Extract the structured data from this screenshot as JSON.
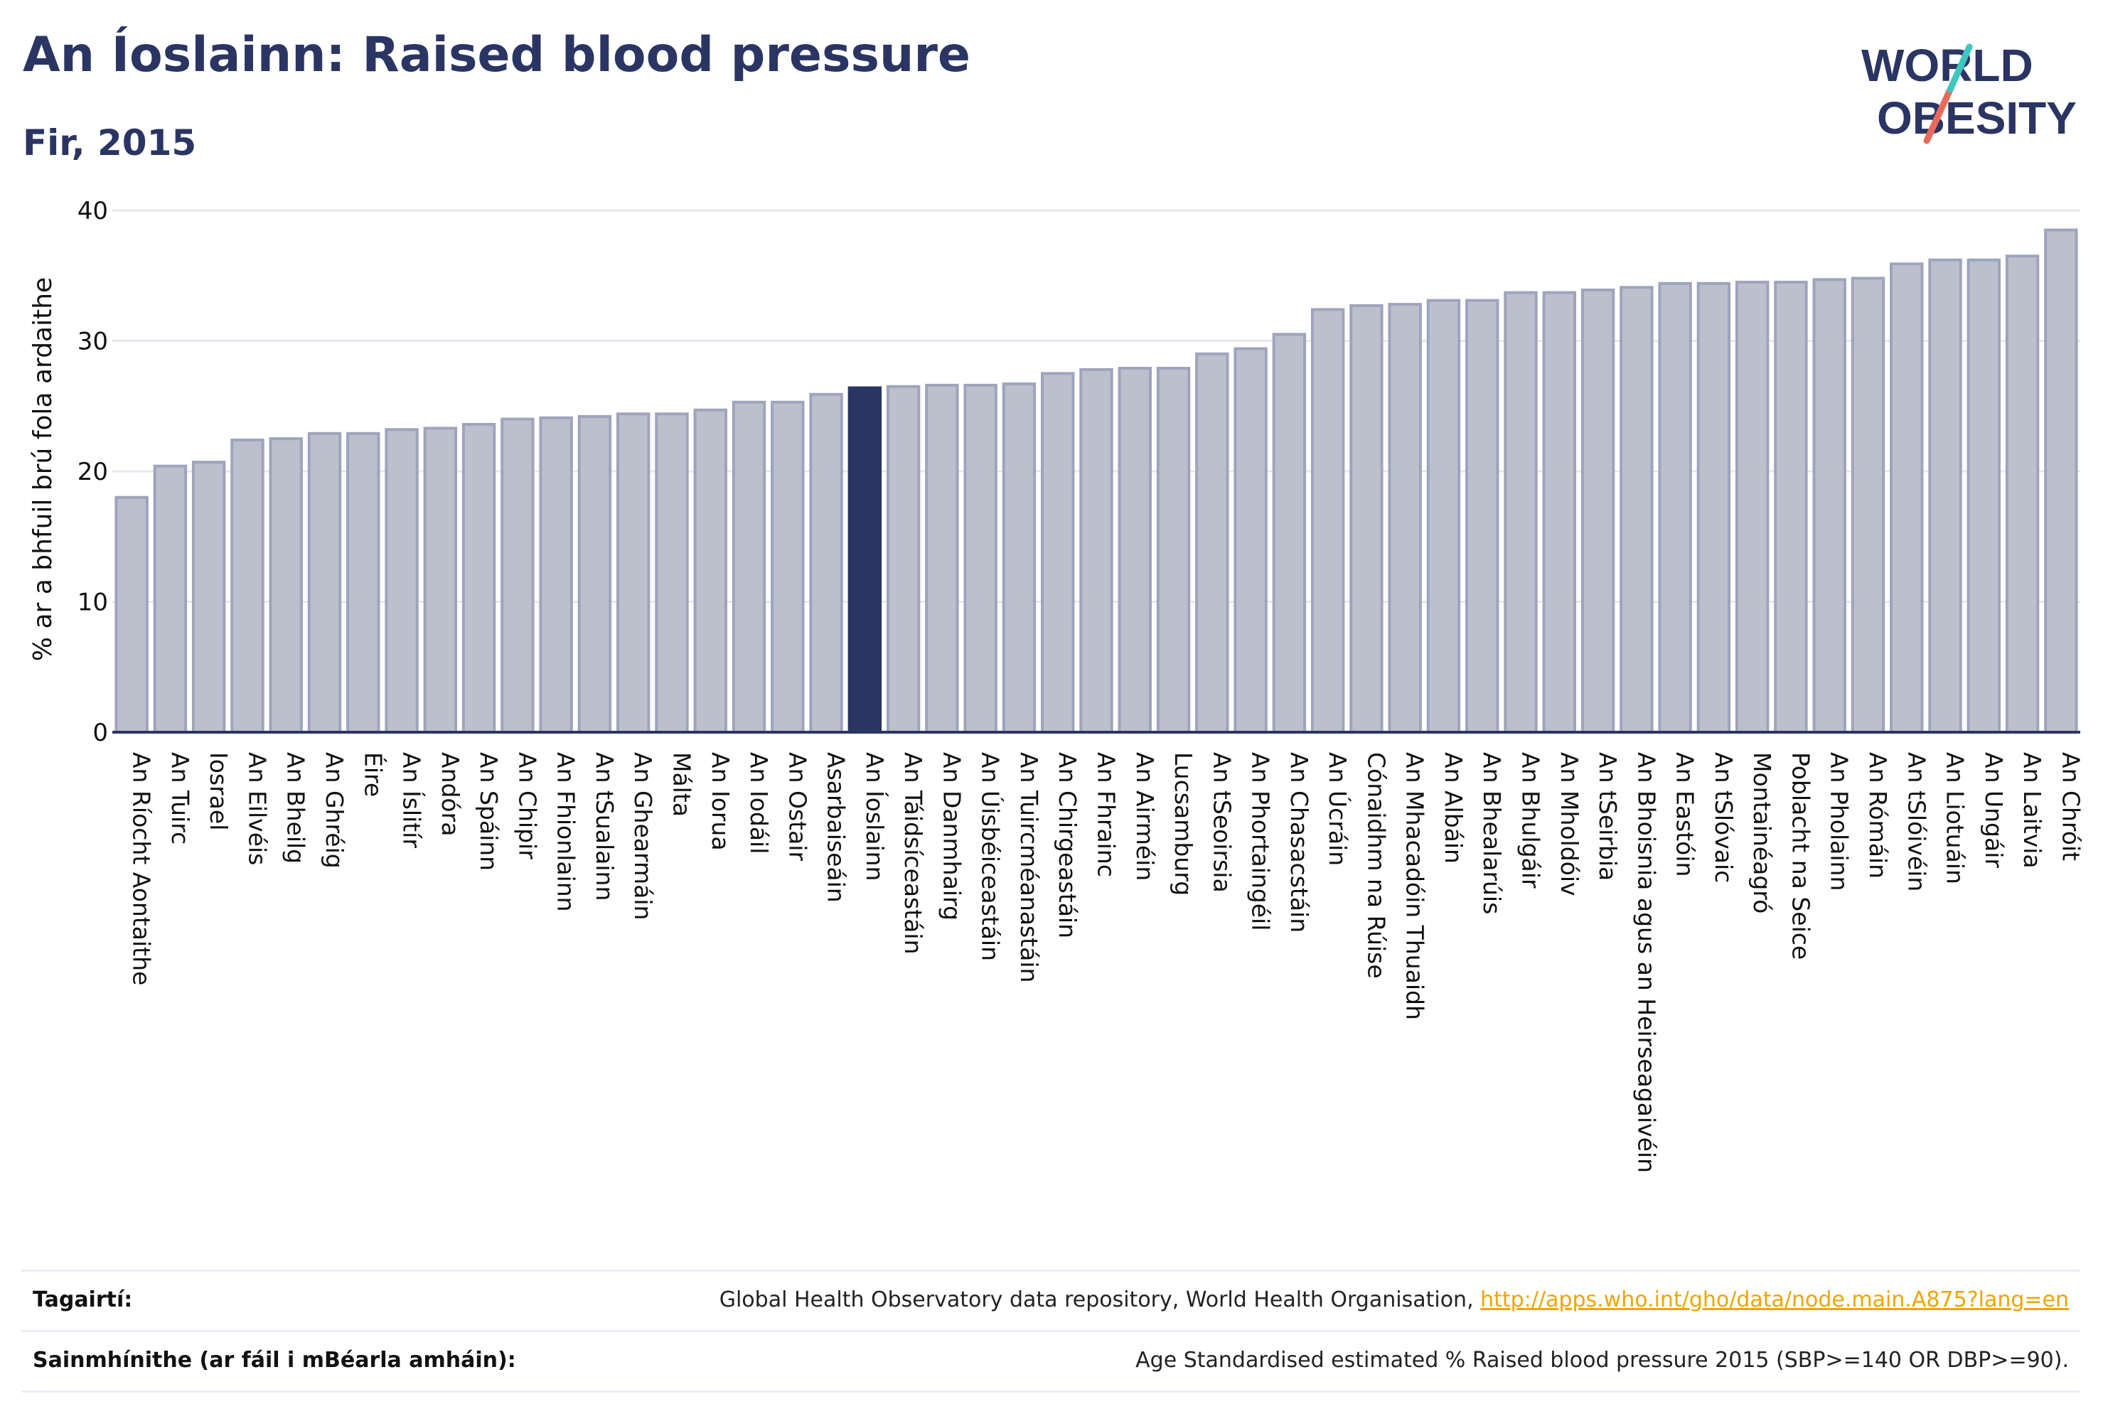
{
  "header": {
    "title": "An Íoslainn: Raised blood pressure",
    "subtitle": "Fir, 2015"
  },
  "logo": {
    "line1": "WORLD",
    "line2": "OBESITY"
  },
  "colors": {
    "title": "#2a3563",
    "highlight_bar": "#2a3563",
    "bar_fill": "#bcc0cd",
    "bar_stroke": "#9fa4bd",
    "logo_teal": "#3ec6c0",
    "logo_coral": "#e96a5b",
    "link": "#f0a500"
  },
  "chart_data": {
    "type": "bar",
    "ylabel": "% ar a bhfuil brú fola ardaithe",
    "ylim": [
      0,
      40
    ],
    "yticks": [
      "0",
      "10",
      "20",
      "30",
      "40"
    ],
    "grid": true,
    "highlight": "An Íoslainn",
    "categories": [
      "An Ríocht Aontaithe",
      "An Tuirc",
      "Iosrael",
      "An Eilvéis",
      "An Bheilg",
      "An Ghréig",
      "Éire",
      "An Íslitír",
      "Andóra",
      "An Spáinn",
      "An Chipir",
      "An Fhionlainn",
      "An tSualainn",
      "An Ghearmáin",
      "Málta",
      "An Iorua",
      "An Iodáil",
      "An Ostair",
      "Asarbaiseáin",
      "An Íoslainn",
      "An Táidsíceastáin",
      "An Danmhairg",
      "An Úisbéiceastáin",
      "An Tuircméanastáin",
      "An Chirgeastáin",
      "An Fhrainc",
      "An Airméin",
      "Lucsamburg",
      "An tSeoirsia",
      "An Phortaingéil",
      "An Chasacstáin",
      "An Úcráin",
      "Cónaidhm na Rúise",
      "An Mhacadóin Thuaidh",
      "An Albáin",
      "An Bhealarúis",
      "An Bhulgáir",
      "An Mholdóiv",
      "An tSeirbia",
      "An Bhoisnia agus an Heirseagaivéin",
      "An Eastóin",
      "An tSlóvaic",
      "Montainéagró",
      "Poblacht na Seice",
      "An Pholainn",
      "An Rómáin",
      "An tSlóivéin",
      "An Liotuáin",
      "An Ungáir",
      "An Laitvia",
      "An Chróit"
    ],
    "values": [
      18.0,
      20.4,
      20.7,
      22.4,
      22.5,
      22.9,
      22.9,
      23.2,
      23.3,
      23.6,
      24.0,
      24.1,
      24.2,
      24.4,
      24.4,
      24.7,
      25.3,
      25.3,
      25.9,
      26.4,
      26.5,
      26.6,
      26.6,
      26.7,
      27.5,
      27.8,
      27.9,
      27.9,
      29.0,
      29.4,
      30.5,
      32.4,
      32.7,
      32.8,
      33.1,
      33.1,
      33.7,
      33.7,
      33.9,
      34.1,
      34.4,
      34.4,
      34.5,
      34.5,
      34.7,
      34.8,
      35.9,
      36.2,
      36.2,
      36.5,
      38.5
    ]
  },
  "footer": {
    "references_label": "Tagairtí:",
    "references_text": "Global Health Observatory data repository, World Health Organisation, ",
    "references_link": "http://apps.who.int/gho/data/node.main.A875?lang=en",
    "definitions_label": "Sainmhínithe (ar fáil i mBéarla amháin):",
    "definitions_text": "Age Standardised estimated % Raised blood pressure 2015 (SBP>=140 OR DBP>=90)."
  }
}
